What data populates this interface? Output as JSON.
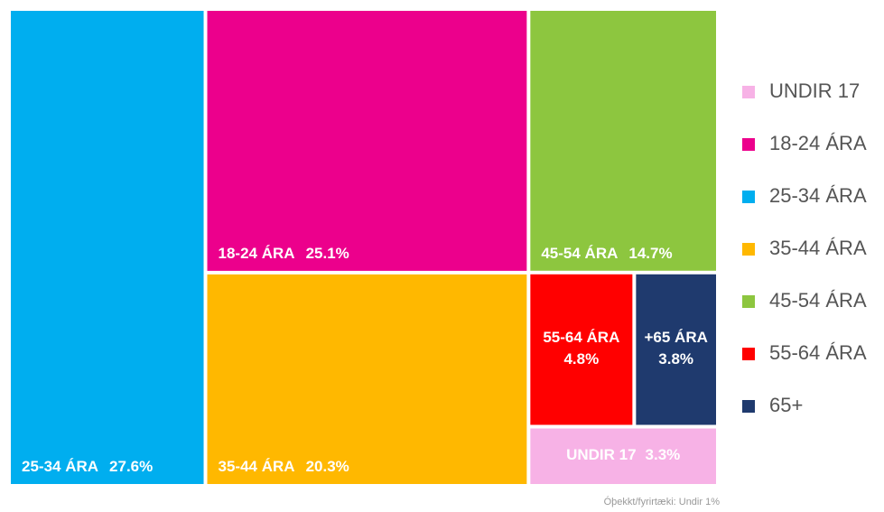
{
  "chart_data": {
    "type": "treemap",
    "categories": [
      "UNDIR 17",
      "18-24 ÁRA",
      "25-34 ÁRA",
      "35-44 ÁRA",
      "45-54 ÁRA",
      "55-64 ÁRA",
      "65+"
    ],
    "tile_labels": [
      "UNDIR 17",
      "18-24 ÁRA",
      "25-34 ÁRA",
      "35-44 ÁRA",
      "45-54 ÁRA",
      "55-64 ÁRA",
      "+65 ÁRA"
    ],
    "values": [
      3.3,
      25.1,
      27.6,
      20.3,
      14.7,
      4.8,
      3.8
    ],
    "value_labels": [
      "3.3%",
      "25.1%",
      "27.6%",
      "20.3%",
      "14.7%",
      "4.8%",
      "3.8%"
    ],
    "colors": [
      "#f7b2e6",
      "#ec008c",
      "#00aeef",
      "#ffb800",
      "#8dc63f",
      "#ff0000",
      "#1f3a6e"
    ],
    "legend": "right",
    "annotation": "Óþekkt/fyrirtæki: Undir 1%"
  }
}
